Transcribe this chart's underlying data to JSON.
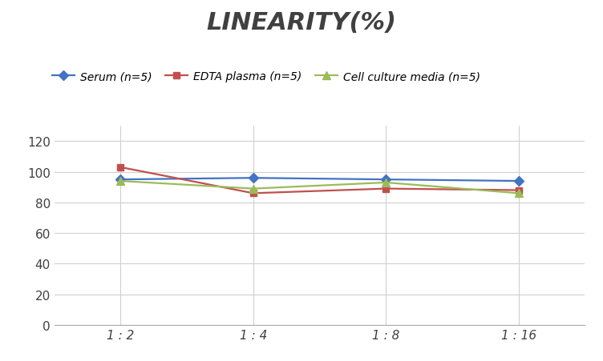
{
  "title": "LINEARITY(%)",
  "x_labels": [
    "1 : 2",
    "1 : 4",
    "1 : 8",
    "1 : 16"
  ],
  "x_positions": [
    0,
    1,
    2,
    3
  ],
  "series": [
    {
      "label": "Serum (n=5)",
      "values": [
        95,
        96,
        95,
        94
      ],
      "color": "#4472C4",
      "marker": "D",
      "marker_size": 6,
      "linewidth": 1.6
    },
    {
      "label": "EDTA plasma (n=5)",
      "values": [
        103,
        86,
        89,
        88
      ],
      "color": "#C0504D",
      "marker": "s",
      "marker_size": 6,
      "linewidth": 1.6
    },
    {
      "label": "Cell culture media (n=5)",
      "values": [
        94,
        89,
        93,
        86
      ],
      "color": "#9BBB59",
      "marker": "^",
      "marker_size": 7,
      "linewidth": 1.6
    }
  ],
  "ylim": [
    0,
    130
  ],
  "yticks": [
    0,
    20,
    40,
    60,
    80,
    100,
    120
  ],
  "background_color": "#ffffff",
  "title_fontsize": 22,
  "title_fontstyle": "italic",
  "title_fontweight": "bold",
  "title_color": "#404040",
  "legend_fontsize": 10,
  "tick_fontsize": 11,
  "grid_color": "#d0d0d0",
  "grid_linewidth": 0.8
}
